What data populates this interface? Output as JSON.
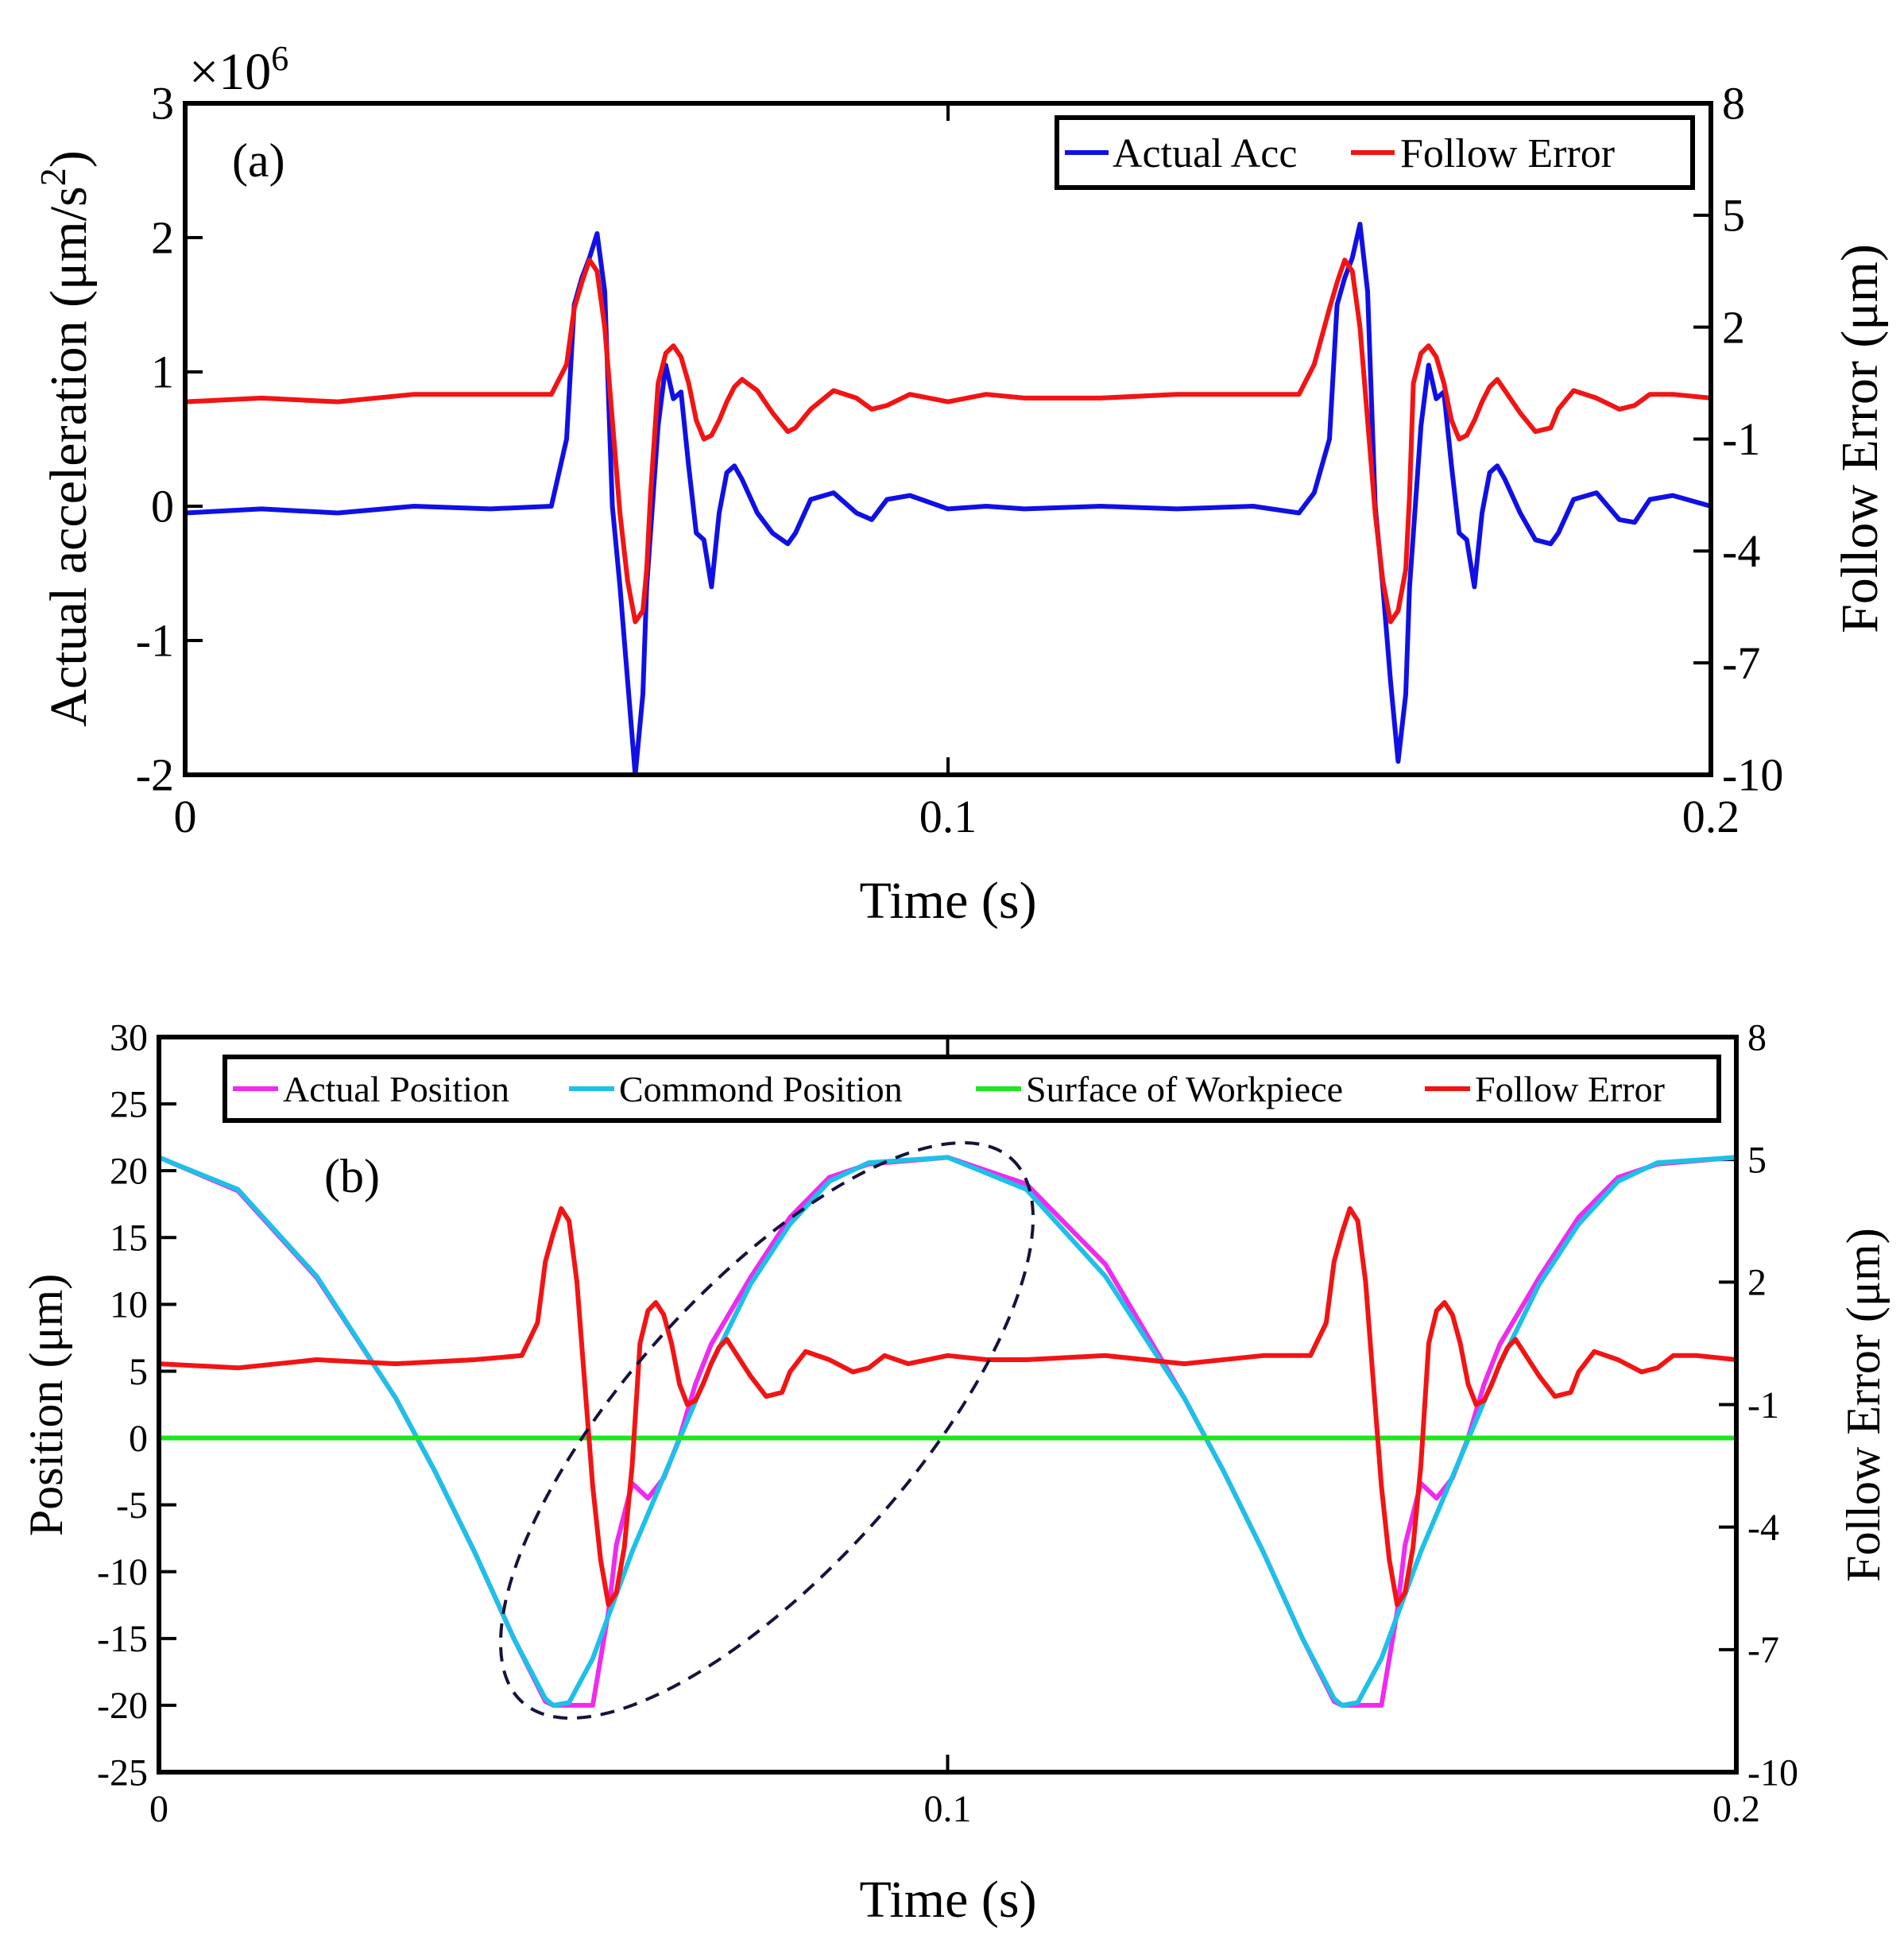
{
  "chart_data": [
    {
      "type": "line",
      "panel_label": "(a)",
      "multiplier_label": "×10",
      "multiplier_exponent": "6",
      "xlabel": "Time (s)",
      "ylabel": "Actual acceleration (μm/s²)",
      "ylabel_main": "Actual acceleration (μm/s",
      "ylabel_sup": "2",
      "ylabel_close": ")",
      "y2label": "Follow Error (μm)",
      "xlim": [
        0,
        0.2
      ],
      "ylim": [
        -2,
        3
      ],
      "y2lim": [
        -10,
        8
      ],
      "xticks": [
        "0",
        "0.1",
        "0.2"
      ],
      "yticks": [
        "-2",
        "-1",
        "0",
        "1",
        "2",
        "3"
      ],
      "y2ticks": [
        "-10",
        "-7",
        "-4",
        "-1",
        "2",
        "5",
        "8"
      ],
      "legend_position": "top-right",
      "series": [
        {
          "name": "Actual Acc",
          "color": "#1010e6",
          "axis": "left",
          "x": [
            0,
            0.01,
            0.02,
            0.03,
            0.04,
            0.048,
            0.05,
            0.051,
            0.052,
            0.053,
            0.054,
            0.055,
            0.056,
            0.057,
            0.058,
            0.059,
            0.06,
            0.0605,
            0.061,
            0.062,
            0.063,
            0.064,
            0.065,
            0.066,
            0.067,
            0.068,
            0.069,
            0.07,
            0.071,
            0.072,
            0.073,
            0.075,
            0.077,
            0.079,
            0.08,
            0.082,
            0.085,
            0.088,
            0.09,
            0.092,
            0.095,
            0.1,
            0.105,
            0.11,
            0.12,
            0.13,
            0.14,
            0.146,
            0.148,
            0.15,
            0.151,
            0.152,
            0.153,
            0.154,
            0.155,
            0.156,
            0.157,
            0.158,
            0.159,
            0.16,
            0.1605,
            0.161,
            0.162,
            0.163,
            0.164,
            0.165,
            0.166,
            0.167,
            0.168,
            0.169,
            0.17,
            0.171,
            0.172,
            0.173,
            0.175,
            0.177,
            0.179,
            0.18,
            0.182,
            0.185,
            0.188,
            0.19,
            0.192,
            0.195,
            0.2
          ],
          "values": [
            -0.05,
            -0.02,
            -0.05,
            0.0,
            -0.02,
            0.0,
            0.5,
            1.5,
            1.7,
            1.85,
            2.03,
            1.6,
            0.0,
            -0.6,
            -1.3,
            -2.0,
            -1.4,
            -0.6,
            -0.2,
            0.6,
            1.05,
            0.8,
            0.85,
            0.3,
            -0.2,
            -0.25,
            -0.6,
            -0.05,
            0.25,
            0.3,
            0.2,
            -0.05,
            -0.2,
            -0.28,
            -0.2,
            0.05,
            0.1,
            -0.05,
            -0.1,
            0.05,
            0.08,
            -0.02,
            0.0,
            -0.02,
            0.0,
            -0.02,
            0.0,
            -0.05,
            0.1,
            0.5,
            1.5,
            1.7,
            1.85,
            2.1,
            1.6,
            0.0,
            -0.6,
            -1.3,
            -1.9,
            -1.4,
            -0.6,
            -0.2,
            0.6,
            1.05,
            0.8,
            0.85,
            0.3,
            -0.2,
            -0.25,
            -0.6,
            -0.05,
            0.25,
            0.3,
            0.2,
            -0.05,
            -0.25,
            -0.28,
            -0.2,
            0.05,
            0.1,
            -0.1,
            -0.12,
            0.05,
            0.08,
            0.0
          ]
        },
        {
          "name": "Follow Error",
          "color": "#f21414",
          "axis": "right",
          "x": [
            0,
            0.01,
            0.02,
            0.03,
            0.04,
            0.048,
            0.05,
            0.051,
            0.052,
            0.053,
            0.054,
            0.055,
            0.056,
            0.057,
            0.058,
            0.059,
            0.06,
            0.0605,
            0.061,
            0.062,
            0.063,
            0.064,
            0.065,
            0.066,
            0.067,
            0.068,
            0.069,
            0.07,
            0.071,
            0.072,
            0.073,
            0.075,
            0.077,
            0.079,
            0.08,
            0.082,
            0.085,
            0.088,
            0.09,
            0.092,
            0.095,
            0.1,
            0.105,
            0.11,
            0.12,
            0.13,
            0.14,
            0.146,
            0.148,
            0.15,
            0.151,
            0.152,
            0.153,
            0.154,
            0.155,
            0.156,
            0.157,
            0.158,
            0.159,
            0.16,
            0.1605,
            0.161,
            0.162,
            0.163,
            0.164,
            0.165,
            0.166,
            0.167,
            0.168,
            0.169,
            0.17,
            0.171,
            0.172,
            0.173,
            0.175,
            0.177,
            0.179,
            0.18,
            0.182,
            0.185,
            0.188,
            0.19,
            0.192,
            0.195,
            0.2
          ],
          "values": [
            0.0,
            0.1,
            0.0,
            0.2,
            0.2,
            0.2,
            1.0,
            2.5,
            3.2,
            3.8,
            3.5,
            2.0,
            -0.5,
            -3.0,
            -4.8,
            -5.9,
            -5.6,
            -4.5,
            -2.5,
            0.5,
            1.3,
            1.5,
            1.2,
            0.5,
            -0.5,
            -1.0,
            -0.9,
            -0.5,
            0.0,
            0.4,
            0.6,
            0.3,
            -0.3,
            -0.8,
            -0.7,
            -0.2,
            0.3,
            0.1,
            -0.2,
            -0.1,
            0.2,
            0.0,
            0.2,
            0.1,
            0.1,
            0.2,
            0.2,
            0.2,
            1.0,
            2.5,
            3.2,
            3.8,
            3.5,
            2.0,
            -0.5,
            -3.0,
            -4.8,
            -5.9,
            -5.6,
            -4.5,
            -2.5,
            0.5,
            1.3,
            1.5,
            1.2,
            0.5,
            -0.5,
            -1.0,
            -0.9,
            -0.5,
            0.0,
            0.4,
            0.6,
            0.3,
            -0.3,
            -0.8,
            -0.7,
            -0.2,
            0.3,
            0.1,
            -0.2,
            -0.1,
            0.2,
            0.2,
            0.1
          ]
        }
      ]
    },
    {
      "type": "line",
      "panel_label": "(b)",
      "xlabel": "Time (s)",
      "ylabel": "Position (μm)",
      "y2label": "Follow Error (μm)",
      "xlim": [
        0,
        0.2
      ],
      "ylim": [
        -25,
        30
      ],
      "y2lim": [
        -10,
        8
      ],
      "xticks": [
        "0",
        "0.1",
        "0.2"
      ],
      "yticks": [
        "-25",
        "-20",
        "-15",
        "-10",
        "-5",
        "0",
        "5",
        "10",
        "15",
        "20",
        "25",
        "30"
      ],
      "y2ticks": [
        "-10",
        "-7",
        "-4",
        "-1",
        "2",
        "5",
        "8"
      ],
      "legend_position": "top",
      "annotation": "dashed ellipse around the downstroke-to-upstroke transition near t = 0.05–0.1 s",
      "series": [
        {
          "name": "Actual Position",
          "color": "#ee2bee",
          "axis": "left",
          "x": [
            0,
            0.01,
            0.02,
            0.03,
            0.035,
            0.04,
            0.045,
            0.049,
            0.05,
            0.052,
            0.053,
            0.055,
            0.057,
            0.058,
            0.06,
            0.062,
            0.064,
            0.066,
            0.068,
            0.07,
            0.075,
            0.08,
            0.085,
            0.09,
            0.1,
            0.11,
            0.12,
            0.13,
            0.135,
            0.14,
            0.145,
            0.149,
            0.15,
            0.152,
            0.153,
            0.155,
            0.157,
            0.158,
            0.16,
            0.162,
            0.164,
            0.166,
            0.168,
            0.17,
            0.175,
            0.18,
            0.185,
            0.19,
            0.2
          ],
          "values": [
            21,
            18.5,
            12,
            3,
            -2.5,
            -8.5,
            -15,
            -19.7,
            -20,
            -20,
            -20,
            -20,
            -13,
            -8,
            -3.4,
            -4.5,
            -3,
            0,
            4,
            7,
            12,
            16.5,
            19.5,
            20.5,
            21,
            19,
            13,
            3,
            -2.5,
            -8.5,
            -15,
            -19.7,
            -20,
            -20,
            -20,
            -20,
            -13,
            -8,
            -3.4,
            -4.5,
            -3,
            0,
            4,
            7,
            12,
            16.5,
            19.5,
            20.5,
            21
          ]
        },
        {
          "name": "Commond Position",
          "color": "#1ec0e8",
          "axis": "left",
          "x": [
            0,
            0.01,
            0.02,
            0.03,
            0.035,
            0.04,
            0.045,
            0.049,
            0.05,
            0.052,
            0.055,
            0.06,
            0.065,
            0.07,
            0.075,
            0.08,
            0.085,
            0.09,
            0.1,
            0.11,
            0.12,
            0.13,
            0.135,
            0.14,
            0.145,
            0.149,
            0.15,
            0.152,
            0.155,
            0.16,
            0.165,
            0.17,
            0.175,
            0.18,
            0.185,
            0.19,
            0.2
          ],
          "values": [
            21,
            18.6,
            12.1,
            3.0,
            -2.5,
            -8.5,
            -15,
            -19.5,
            -20,
            -19.8,
            -16.5,
            -8.5,
            -1.5,
            5.5,
            11.5,
            16,
            19.2,
            20.6,
            21,
            18.6,
            12.1,
            3.0,
            -2.5,
            -8.5,
            -15,
            -19.5,
            -20,
            -19.8,
            -16.5,
            -8.5,
            -1.5,
            5.5,
            11.5,
            16,
            19.2,
            20.6,
            21
          ]
        },
        {
          "name": "Surface of Workpiece",
          "color": "#1ee61e",
          "axis": "left",
          "x": [
            0,
            0.2
          ],
          "values": [
            0,
            0
          ]
        },
        {
          "name": "Follow Error",
          "color": "#f21414",
          "axis": "right",
          "x": [
            0,
            0.01,
            0.02,
            0.03,
            0.04,
            0.046,
            0.048,
            0.049,
            0.05,
            0.051,
            0.052,
            0.053,
            0.054,
            0.055,
            0.056,
            0.057,
            0.058,
            0.059,
            0.06,
            0.061,
            0.062,
            0.063,
            0.064,
            0.065,
            0.066,
            0.067,
            0.068,
            0.069,
            0.07,
            0.071,
            0.072,
            0.073,
            0.075,
            0.077,
            0.079,
            0.08,
            0.082,
            0.085,
            0.088,
            0.09,
            0.092,
            0.095,
            0.1,
            0.105,
            0.11,
            0.12,
            0.13,
            0.14,
            0.146,
            0.148,
            0.149,
            0.15,
            0.151,
            0.152,
            0.153,
            0.154,
            0.155,
            0.156,
            0.157,
            0.158,
            0.159,
            0.16,
            0.161,
            0.162,
            0.163,
            0.164,
            0.165,
            0.166,
            0.167,
            0.168,
            0.169,
            0.17,
            0.171,
            0.172,
            0.173,
            0.175,
            0.177,
            0.179,
            0.18,
            0.182,
            0.185,
            0.188,
            0.19,
            0.192,
            0.195,
            0.2
          ],
          "values": [
            0.0,
            -0.1,
            0.1,
            0.0,
            0.1,
            0.2,
            1.0,
            2.5,
            3.2,
            3.8,
            3.5,
            2.0,
            -0.5,
            -3.0,
            -4.8,
            -5.9,
            -5.6,
            -4.5,
            -2.5,
            0.5,
            1.3,
            1.5,
            1.2,
            0.5,
            -0.5,
            -1.0,
            -0.9,
            -0.5,
            0.0,
            0.4,
            0.6,
            0.3,
            -0.3,
            -0.8,
            -0.7,
            -0.2,
            0.3,
            0.1,
            -0.2,
            -0.1,
            0.2,
            0.0,
            0.2,
            0.1,
            0.1,
            0.2,
            0.0,
            0.2,
            0.2,
            1.0,
            2.5,
            3.2,
            3.8,
            3.5,
            2.0,
            -0.5,
            -3.0,
            -4.8,
            -5.9,
            -5.6,
            -4.5,
            -2.5,
            0.5,
            1.3,
            1.5,
            1.2,
            0.5,
            -0.5,
            -1.0,
            -0.9,
            -0.5,
            0.0,
            0.4,
            0.6,
            0.3,
            -0.3,
            -0.8,
            -0.7,
            -0.2,
            0.3,
            0.1,
            -0.2,
            -0.1,
            0.2,
            0.2,
            0.1
          ]
        }
      ]
    }
  ]
}
